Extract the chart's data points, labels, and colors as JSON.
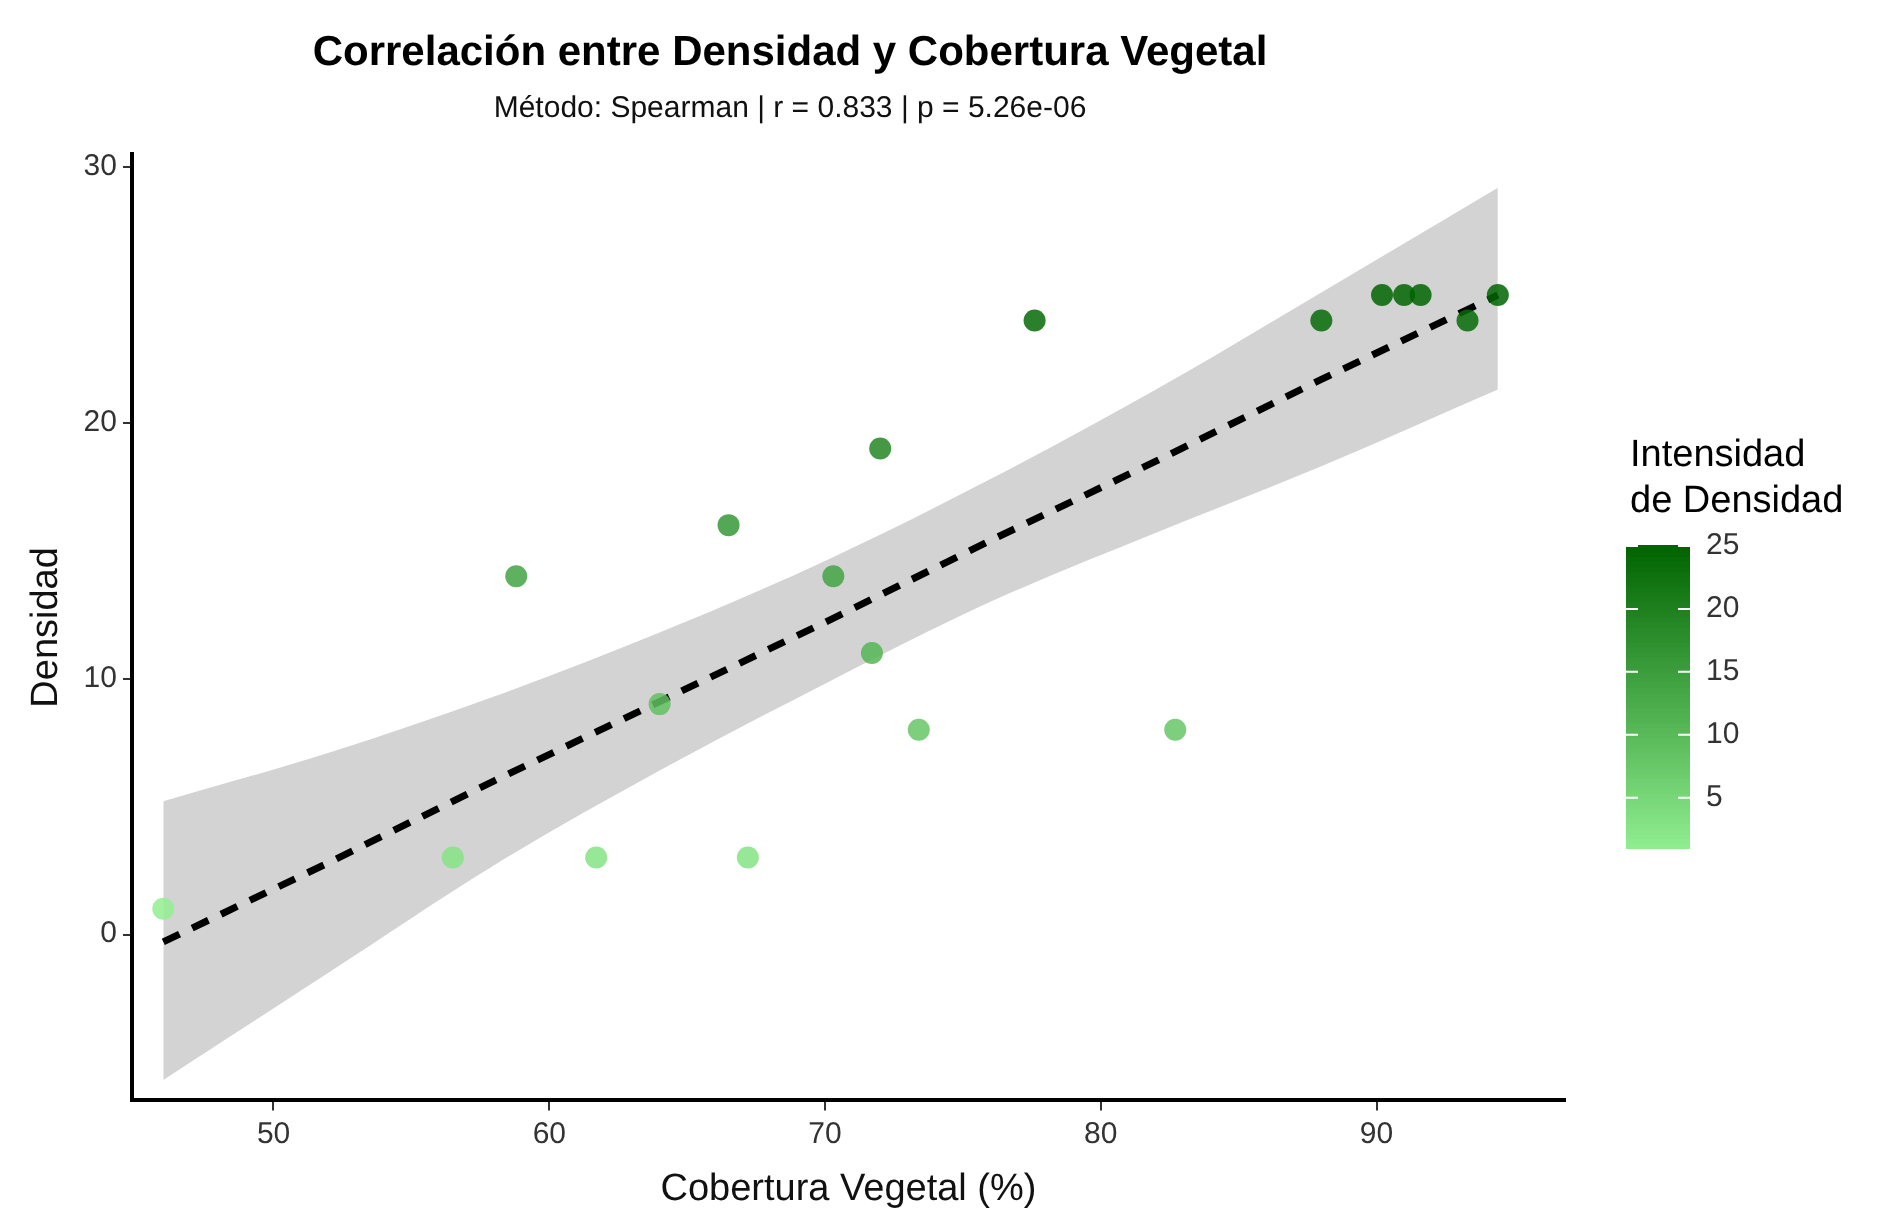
{
  "chart_data": {
    "type": "scatter",
    "title": "Correlación entre Densidad y Cobertura Vegetal",
    "subtitle": "Método: Spearman | r = 0.833 | p = 5.26e-06",
    "xlabel": "Cobertura Vegetal (%)",
    "ylabel": "Densidad",
    "clabel": "Intensidad\nde Densidad",
    "xlim": [
      44.9,
      96.8
    ],
    "xticks": [
      50,
      60,
      70,
      80,
      90
    ],
    "ylim": [
      -6.5,
      30.5
    ],
    "yticks": [
      0,
      10,
      20,
      30
    ],
    "clim": [
      1,
      25
    ],
    "cticks": [
      5,
      10,
      15,
      20,
      25
    ],
    "grid": false,
    "legend": false,
    "marker": "circle",
    "series": [
      {
        "type": "scatter",
        "x": [
          46.0,
          56.5,
          58.8,
          61.7,
          64.0,
          66.5,
          67.2,
          70.3,
          71.7,
          72.0,
          73.4,
          77.6,
          82.7,
          88.0,
          90.2,
          91.0,
          91.6,
          93.3,
          94.4
        ],
        "values": [
          1,
          3,
          14,
          3,
          9,
          16,
          3,
          14,
          11,
          19,
          8,
          24,
          8,
          24,
          25,
          25,
          25,
          24,
          25
        ],
        "colors": [
          "#90ee90",
          "#84e384",
          "#42a342",
          "#84e384",
          "#60c060",
          "#369836",
          "#84e384",
          "#42a342",
          "#54b554",
          "#248724",
          "#66c666",
          "#066a06",
          "#66c666",
          "#066a06",
          "#006400",
          "#006400",
          "#006400",
          "#066a06",
          "#006400"
        ]
      },
      {
        "type": "line",
        "color": "#000000",
        "line_style": "dashed",
        "marker": "none",
        "x": [
          46,
          52,
          58,
          64,
          70,
          76,
          82,
          88,
          94.4
        ],
        "values": [
          -0.3,
          2.8,
          6.0,
          9.1,
          12.2,
          15.4,
          18.5,
          21.7,
          25.0
        ],
        "lower": [
          -5.7,
          -1.5,
          2.7,
          6.4,
          9.8,
          13.0,
          15.7,
          18.3,
          21.3
        ],
        "upper": [
          5.2,
          7.1,
          9.3,
          11.8,
          14.6,
          17.8,
          21.3,
          25.1,
          29.2
        ]
      }
    ]
  }
}
